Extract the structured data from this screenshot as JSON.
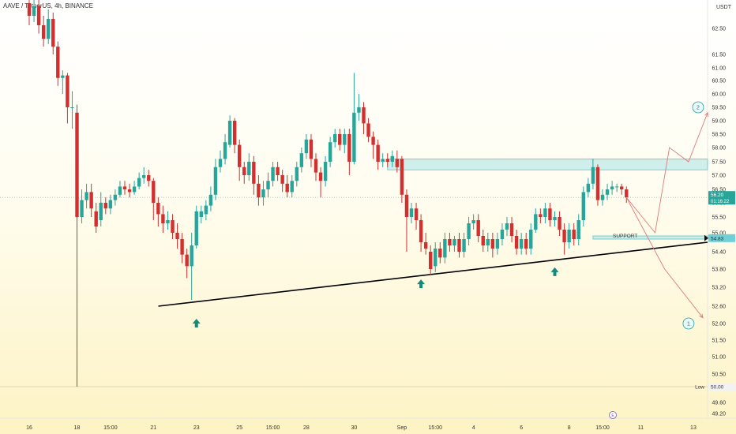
{
  "header": {
    "symbol_title": "AAVE / TetherUS, 4h, BINANCE",
    "currency": "USDT"
  },
  "chart_data": {
    "type": "candlestick",
    "title": "AAVE / TetherUS, 4h, BINANCE",
    "y_unit": "USDT",
    "ylim": [
      49.0,
      63.4
    ],
    "y_ticks": [
      62.5,
      61.5,
      61.0,
      60.5,
      60.0,
      59.5,
      59.0,
      58.5,
      58.0,
      57.5,
      57.0,
      56.5,
      56.0,
      55.5,
      55.0,
      54.4,
      53.8,
      53.2,
      52.6,
      52.0,
      51.5,
      51.0,
      50.5,
      50.0,
      49.6,
      49.2
    ],
    "y_tick_labels": [
      "62.50",
      "61.50",
      "61.00",
      "60.50",
      "60.00",
      "59.50",
      "59.00",
      "58.50",
      "58.00",
      "57.50",
      "57.00",
      "56.50",
      "56.00",
      "55.50",
      "55.00",
      "54.40",
      "53.80",
      "53.20",
      "52.60",
      "52.00",
      "51.50",
      "51.00",
      "50.50",
      "50.00",
      "49.60",
      "49.20"
    ],
    "x_ticks": [
      {
        "label": "16",
        "i": 0
      },
      {
        "label": "18",
        "i": 10
      },
      {
        "label": "15:00",
        "i": 17
      },
      {
        "label": "21",
        "i": 26
      },
      {
        "label": "23",
        "i": 35
      },
      {
        "label": "25",
        "i": 44
      },
      {
        "label": "15:00",
        "i": 51
      },
      {
        "label": "28",
        "i": 58
      },
      {
        "label": "30",
        "i": 68
      },
      {
        "label": "Sep",
        "i": 78
      },
      {
        "label": "15:00",
        "i": 85
      },
      {
        "label": "4",
        "i": 93
      },
      {
        "label": "6",
        "i": 103
      },
      {
        "label": "8",
        "i": 113
      },
      {
        "label": "15:00",
        "i": 120
      },
      {
        "label": "11",
        "i": 128
      },
      {
        "label": "13",
        "i": 139
      }
    ],
    "candles": [
      [
        63.3,
        62.9,
        63.5,
        62.6
      ],
      [
        62.9,
        63.2,
        63.4,
        62.7
      ],
      [
        63.2,
        62.6,
        63.4,
        62.3
      ],
      [
        62.6,
        62.1,
        62.9,
        61.8
      ],
      [
        62.1,
        62.8,
        63.1,
        61.9
      ],
      [
        62.8,
        61.8,
        63.0,
        61.5
      ],
      [
        61.8,
        60.6,
        62.0,
        60.3
      ],
      [
        60.6,
        60.7,
        60.9,
        60.0
      ],
      [
        60.7,
        59.5,
        60.8,
        58.9
      ],
      [
        59.5,
        59.5,
        60.1,
        58.7
      ],
      [
        59.3,
        55.5,
        59.6,
        50.0
      ],
      [
        55.5,
        56.1,
        56.5,
        55.3
      ],
      [
        56.1,
        56.4,
        56.7,
        55.8
      ],
      [
        56.4,
        55.8,
        56.7,
        55.5
      ],
      [
        55.7,
        55.2,
        56.0,
        55.0
      ],
      [
        55.4,
        56.0,
        56.4,
        55.2
      ],
      [
        56.0,
        55.8,
        56.2,
        55.6
      ],
      [
        55.8,
        56.1,
        56.3,
        55.6
      ],
      [
        56.1,
        56.3,
        56.5,
        55.9
      ],
      [
        56.3,
        56.6,
        56.8,
        56.2
      ],
      [
        56.6,
        56.5,
        56.8,
        56.3
      ],
      [
        56.5,
        56.4,
        56.7,
        56.2
      ],
      [
        56.4,
        56.6,
        56.8,
        56.3
      ],
      [
        56.6,
        56.9,
        57.1,
        56.5
      ],
      [
        56.9,
        57.0,
        57.3,
        56.7
      ],
      [
        57.0,
        56.8,
        57.2,
        56.6
      ],
      [
        56.8,
        56.0,
        56.9,
        55.4
      ],
      [
        56.0,
        55.6,
        56.2,
        55.2
      ],
      [
        55.6,
        55.3,
        55.9,
        55.0
      ],
      [
        55.3,
        55.4,
        55.7,
        55.1
      ],
      [
        55.4,
        55.0,
        55.6,
        54.8
      ],
      [
        55.0,
        54.8,
        55.3,
        54.5
      ],
      [
        54.8,
        54.3,
        55.0,
        54.0
      ],
      [
        54.3,
        53.9,
        54.5,
        53.5
      ],
      [
        53.9,
        54.6,
        55.0,
        52.8
      ],
      [
        54.6,
        55.7,
        55.9,
        54.5
      ],
      [
        55.5,
        55.7,
        55.9,
        55.3
      ],
      [
        55.6,
        55.9,
        56.1,
        55.4
      ],
      [
        55.9,
        56.3,
        56.6,
        55.7
      ],
      [
        56.3,
        57.3,
        57.6,
        56.1
      ],
      [
        57.3,
        57.6,
        57.9,
        57.1
      ],
      [
        57.6,
        58.2,
        58.5,
        57.4
      ],
      [
        58.1,
        59.0,
        59.2,
        58.0
      ],
      [
        59.0,
        58.1,
        59.1,
        57.8
      ],
      [
        58.1,
        57.3,
        58.3,
        56.8
      ],
      [
        57.3,
        57.0,
        57.5,
        56.7
      ],
      [
        57.0,
        57.5,
        57.8,
        56.8
      ],
      [
        57.5,
        56.7,
        57.7,
        56.3
      ],
      [
        56.7,
        56.2,
        57.0,
        55.9
      ],
      [
        56.2,
        56.5,
        56.8,
        55.9
      ],
      [
        56.5,
        56.8,
        57.1,
        56.2
      ],
      [
        56.8,
        57.3,
        57.5,
        56.6
      ],
      [
        57.3,
        57.0,
        57.5,
        56.8
      ],
      [
        57.0,
        56.7,
        57.2,
        56.4
      ],
      [
        56.7,
        56.4,
        57.0,
        56.2
      ],
      [
        56.4,
        56.8,
        57.0,
        56.2
      ],
      [
        56.8,
        57.3,
        57.5,
        56.6
      ],
      [
        57.3,
        57.8,
        58.0,
        57.1
      ],
      [
        57.8,
        58.3,
        58.5,
        57.6
      ],
      [
        58.3,
        57.6,
        58.5,
        57.3
      ],
      [
        57.6,
        57.1,
        57.8,
        56.8
      ],
      [
        57.1,
        56.8,
        57.3,
        56.2
      ],
      [
        56.8,
        57.5,
        57.7,
        56.6
      ],
      [
        57.5,
        58.2,
        58.4,
        57.3
      ],
      [
        58.2,
        58.5,
        58.7,
        58.0
      ],
      [
        58.5,
        58.1,
        58.7,
        57.9
      ],
      [
        58.1,
        58.5,
        58.7,
        57.8
      ],
      [
        58.5,
        57.5,
        58.7,
        57.0
      ],
      [
        57.5,
        59.3,
        60.8,
        57.4
      ],
      [
        59.3,
        59.5,
        60.0,
        59.0
      ],
      [
        59.5,
        58.9,
        59.7,
        58.5
      ],
      [
        58.9,
        58.4,
        59.1,
        58.2
      ],
      [
        58.4,
        58.1,
        58.6,
        57.6
      ],
      [
        58.1,
        57.5,
        58.3,
        57.2
      ],
      [
        57.5,
        57.6,
        57.8,
        57.3
      ],
      [
        57.6,
        57.5,
        57.8,
        57.3
      ],
      [
        57.5,
        57.7,
        57.9,
        57.3
      ],
      [
        57.6,
        57.3,
        57.9,
        57.1
      ],
      [
        57.6,
        56.3,
        57.7,
        56.0
      ],
      [
        56.3,
        55.5,
        56.5,
        54.4
      ],
      [
        55.5,
        55.8,
        56.0,
        55.3
      ],
      [
        55.8,
        55.4,
        56.0,
        55.1
      ],
      [
        55.4,
        54.7,
        55.6,
        54.4
      ],
      [
        54.7,
        54.5,
        55.0,
        54.3
      ],
      [
        54.4,
        53.8,
        54.6,
        53.6
      ],
      [
        53.9,
        54.5,
        54.7,
        53.7
      ],
      [
        54.5,
        54.2,
        54.7,
        54.0
      ],
      [
        54.2,
        54.8,
        55.0,
        54.0
      ],
      [
        54.8,
        54.6,
        55.0,
        54.4
      ],
      [
        54.6,
        54.8,
        54.9,
        54.4
      ],
      [
        54.8,
        54.4,
        55.0,
        54.2
      ],
      [
        54.4,
        54.8,
        55.0,
        54.2
      ],
      [
        54.8,
        55.3,
        55.5,
        54.6
      ],
      [
        55.3,
        55.4,
        55.6,
        55.1
      ],
      [
        55.4,
        54.9,
        55.6,
        54.7
      ],
      [
        54.9,
        54.6,
        55.1,
        54.4
      ],
      [
        54.6,
        54.8,
        55.0,
        54.4
      ],
      [
        54.8,
        54.5,
        55.0,
        54.2
      ],
      [
        54.5,
        54.8,
        55.0,
        54.3
      ],
      [
        54.8,
        55.1,
        55.3,
        54.6
      ],
      [
        55.1,
        55.3,
        55.5,
        54.9
      ],
      [
        55.3,
        54.9,
        55.5,
        54.7
      ],
      [
        54.9,
        54.5,
        55.1,
        54.3
      ],
      [
        54.5,
        54.8,
        55.0,
        54.3
      ],
      [
        54.8,
        54.5,
        55.0,
        54.3
      ],
      [
        54.5,
        55.1,
        55.3,
        54.3
      ],
      [
        55.1,
        55.6,
        55.8,
        55.0
      ],
      [
        55.6,
        55.5,
        55.8,
        55.3
      ],
      [
        55.5,
        55.8,
        56.0,
        55.3
      ],
      [
        55.8,
        55.4,
        56.0,
        55.2
      ],
      [
        55.4,
        55.5,
        55.7,
        55.2
      ],
      [
        55.5,
        55.1,
        55.7,
        54.9
      ],
      [
        55.1,
        54.7,
        55.3,
        54.3
      ],
      [
        54.7,
        55.1,
        55.3,
        54.5
      ],
      [
        55.1,
        54.8,
        55.3,
        54.6
      ],
      [
        54.8,
        55.4,
        55.6,
        54.6
      ],
      [
        55.4,
        56.4,
        56.6,
        55.2
      ],
      [
        56.4,
        56.7,
        56.9,
        56.2
      ],
      [
        56.7,
        57.3,
        57.6,
        56.5
      ],
      [
        57.3,
        56.1,
        57.4,
        55.9
      ],
      [
        56.1,
        56.3,
        56.5,
        55.9
      ],
      [
        56.3,
        56.5,
        56.7,
        56.1
      ],
      [
        56.5,
        56.6,
        56.8,
        56.3
      ],
      [
        56.6,
        56.6,
        56.7,
        56.4
      ],
      [
        56.6,
        56.5,
        56.7,
        56.3
      ],
      [
        56.5,
        56.2,
        56.6,
        56.0
      ]
    ],
    "zones": [
      {
        "from": 57.2,
        "to": 57.6,
        "i_start": 75,
        "label": ""
      },
      {
        "from": 54.8,
        "to": 54.9,
        "i_start": 118,
        "label": "SUPPORT"
      }
    ],
    "trendline": {
      "start": {
        "i": 30,
        "y": 52.6
      },
      "end": {
        "i": 145,
        "y": 54.7
      }
    },
    "projection_path_1": [
      {
        "i": 125,
        "y": 56.2
      },
      {
        "i": 131,
        "y": 55.0
      },
      {
        "i": 134,
        "y": 58.0
      },
      {
        "i": 138,
        "y": 57.5
      },
      {
        "i": 142,
        "y": 59.3
      }
    ],
    "projection_path_2": [
      {
        "i": 125,
        "y": 56.2
      },
      {
        "i": 133,
        "y": 53.8
      },
      {
        "i": 141,
        "y": 52.2
      }
    ],
    "markers": [
      {
        "label": "2",
        "i": 140,
        "y": 59.5
      },
      {
        "label": "1",
        "i": 138,
        "y": 52.0
      }
    ],
    "arrows_up": [
      {
        "i": 35,
        "y": 52.0
      },
      {
        "i": 82,
        "y": 53.3
      },
      {
        "i": 110,
        "y": 53.7
      }
    ],
    "price_labels": [
      {
        "value": "56.20",
        "sub": "01:16:22",
        "y": 56.2
      },
      {
        "value": "54.83",
        "y": 54.83
      },
      {
        "value": "Low",
        "sub2": "50.00",
        "y": 50.0
      }
    ],
    "event_marker": "E",
    "grid": false
  }
}
